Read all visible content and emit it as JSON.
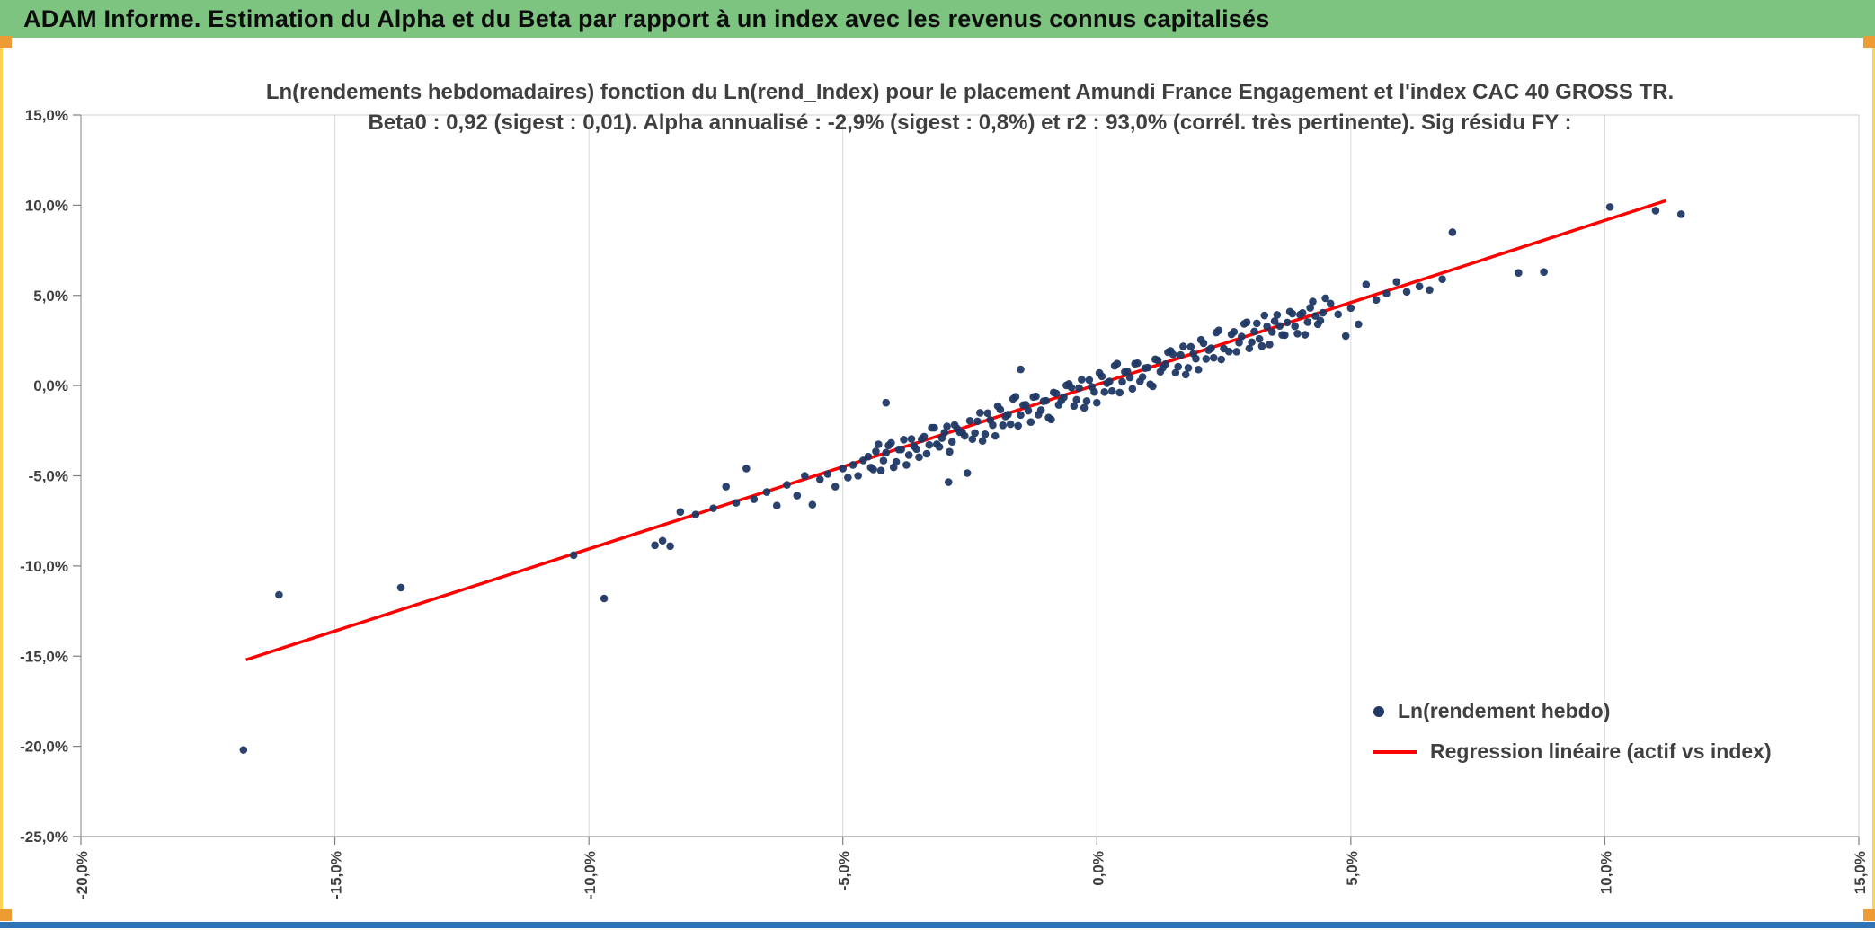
{
  "header": {
    "title": "ADAM Informe. Estimation du Alpha et du Beta par rapport à un index avec les revenus connus capitalisés"
  },
  "theme": {
    "header_bg": "#7cc47f",
    "accent_orange": "#ED9B33",
    "accent_gold": "#ffd34d",
    "bottom_bar_blue": "#2e74b5",
    "scatter_color": "#1F3864",
    "regression_color": "#FF0000",
    "grid_color": "#d9d9d9",
    "tick_text_color": "#404040"
  },
  "chart_data": {
    "type": "scatter",
    "title_line1": "Ln(rendements hebdomadaires) fonction du Ln(rend_Index) pour le placement Amundi France Engagement  et l'index CAC 40 GROSS TR.",
    "title_line2": "Beta0 : 0,92 (sigest : 0,01). Alpha annualisé : -2,9% (sigest : 0,8%) et r2 : 93,0% (corrél. très pertinente). Sig résidu FY :",
    "stats": {
      "beta0": "0,92",
      "beta0_sigest": "0,01",
      "alpha_annualise": "-2,9%",
      "alpha_sigest": "0,8%",
      "r2": "93,0%",
      "correlation_note": "corrél. très pertinente"
    },
    "xlim": [
      -20,
      15
    ],
    "ylim": [
      -25,
      15
    ],
    "grid": "vertical",
    "grid_color": "#d9d9d9",
    "legend_position": "inside-bottom-right",
    "x_tick_values": [
      -20,
      -15,
      -10,
      -5,
      0,
      5,
      10,
      15
    ],
    "x_tick_labels": [
      "-20,0%",
      "-15,0%",
      "-10,0%",
      "-5,0%",
      "0,0%",
      "5,0%",
      "10,0%",
      "15,0%"
    ],
    "y_tick_values": [
      15,
      10,
      5,
      0,
      -5,
      -10,
      -15,
      -20,
      -25
    ],
    "y_tick_labels": [
      "15,0%",
      "10,0%",
      "5,0%",
      "0,0%",
      "-5,0%",
      "-10,0%",
      "-15,0%",
      "-20,0%",
      "-25,0%"
    ],
    "series": [
      {
        "name": "Ln(rendement hebdo)",
        "type": "scatter",
        "color": "#1F3864",
        "marker": "dot",
        "points": [
          [
            -16.8,
            -20.2
          ],
          [
            -16.1,
            -11.6
          ],
          [
            -13.7,
            -11.2
          ],
          [
            -10.3,
            -9.4
          ],
          [
            -9.7,
            -11.8
          ],
          [
            -8.7,
            -8.85
          ],
          [
            -8.55,
            -8.6
          ],
          [
            -8.4,
            -8.9
          ],
          [
            -8.2,
            -7.0
          ],
          [
            -7.9,
            -7.15
          ],
          [
            -7.55,
            -6.8
          ],
          [
            -7.3,
            -5.6
          ],
          [
            -7.1,
            -6.5
          ],
          [
            -6.9,
            -4.6
          ],
          [
            -6.75,
            -6.3
          ],
          [
            -6.5,
            -5.9
          ],
          [
            -6.3,
            -6.65
          ],
          [
            -6.1,
            -5.5
          ],
          [
            -5.9,
            -6.1
          ],
          [
            -5.75,
            -5.0
          ],
          [
            -5.6,
            -6.6
          ],
          [
            -5.45,
            -5.2
          ],
          [
            -5.3,
            -4.9
          ],
          [
            -5.15,
            -5.6
          ],
          [
            -5.0,
            -4.6
          ],
          [
            -4.9,
            -5.1
          ],
          [
            -4.8,
            -4.4
          ],
          [
            -4.7,
            -5.0
          ],
          [
            -4.6,
            -4.15
          ],
          [
            -4.15,
            -0.95
          ],
          [
            -2.92,
            -5.35
          ],
          [
            -2.55,
            -4.85
          ],
          [
            -1.5,
            0.9
          ],
          [
            -4.5,
            -3.94
          ],
          [
            -4.4,
            -4.65
          ],
          [
            -4.3,
            -3.26
          ],
          [
            -4.2,
            -4.16
          ],
          [
            -4.1,
            -3.32
          ],
          [
            -4.0,
            -4.53
          ],
          [
            -3.9,
            -3.54
          ],
          [
            -3.8,
            -3.0
          ],
          [
            -3.7,
            -3.85
          ],
          [
            -3.6,
            -3.36
          ],
          [
            -3.5,
            -3.97
          ],
          [
            -3.4,
            -2.83
          ],
          [
            -3.3,
            -3.29
          ],
          [
            -3.2,
            -2.34
          ],
          [
            -3.1,
            -3.4
          ],
          [
            -3.0,
            -2.61
          ],
          [
            -2.9,
            -3.67
          ],
          [
            -2.8,
            -2.18
          ],
          [
            -2.7,
            -2.58
          ],
          [
            -2.6,
            -2.79
          ],
          [
            -4.45,
            -4.54
          ],
          [
            -4.35,
            -3.65
          ],
          [
            -4.25,
            -4.71
          ],
          [
            -4.15,
            -3.72
          ],
          [
            -4.05,
            -3.18
          ],
          [
            -3.95,
            -4.23
          ],
          [
            -3.85,
            -3.54
          ],
          [
            -3.75,
            -4.4
          ],
          [
            -3.65,
            -2.96
          ],
          [
            -3.55,
            -3.52
          ],
          [
            -3.45,
            -2.97
          ],
          [
            -3.35,
            -3.78
          ],
          [
            -3.25,
            -2.34
          ],
          [
            -3.15,
            -3.25
          ],
          [
            -3.05,
            -2.91
          ],
          [
            -2.95,
            -2.26
          ],
          [
            -2.85,
            -3.12
          ],
          [
            -2.75,
            -2.38
          ],
          [
            -2.65,
            -2.59
          ],
          [
            -2.5,
            -1.95
          ],
          [
            -2.4,
            -2.63
          ],
          [
            -2.3,
            -1.51
          ],
          [
            -2.2,
            -2.7
          ],
          [
            -2.1,
            -1.91
          ],
          [
            -2.0,
            -2.79
          ],
          [
            -1.9,
            -1.33
          ],
          [
            -1.8,
            -1.71
          ],
          [
            -1.7,
            -2.14
          ],
          [
            -1.6,
            -0.62
          ],
          [
            -1.5,
            -1.63
          ],
          [
            -1.4,
            -1.06
          ],
          [
            -1.3,
            -2.02
          ],
          [
            -1.2,
            -0.6
          ],
          [
            -1.1,
            -1.36
          ],
          [
            -1.0,
            -0.84
          ],
          [
            -0.9,
            -1.88
          ],
          [
            -0.8,
            -0.44
          ],
          [
            -0.7,
            -0.84
          ],
          [
            -0.6,
            0.01
          ],
          [
            -0.5,
            -0.11
          ],
          [
            -0.4,
            -0.79
          ],
          [
            -0.3,
            0.33
          ],
          [
            -0.2,
            -0.86
          ],
          [
            -0.1,
            -0.07
          ],
          [
            0.0,
            -0.95
          ],
          [
            0.1,
            0.51
          ],
          [
            0.2,
            0.13
          ],
          [
            0.3,
            -0.3
          ],
          [
            0.4,
            1.22
          ],
          [
            0.5,
            0.21
          ],
          [
            0.6,
            0.78
          ],
          [
            0.7,
            -0.18
          ],
          [
            0.8,
            1.24
          ],
          [
            0.9,
            0.48
          ],
          [
            1.0,
            1.0
          ],
          [
            1.1,
            -0.04
          ],
          [
            1.2,
            1.4
          ],
          [
            1.3,
            1.0
          ],
          [
            1.4,
            1.85
          ],
          [
            1.5,
            1.73
          ],
          [
            1.6,
            1.05
          ],
          [
            1.7,
            2.17
          ],
          [
            1.8,
            0.98
          ],
          [
            1.9,
            1.77
          ],
          [
            2.0,
            0.89
          ],
          [
            2.1,
            2.35
          ],
          [
            2.2,
            1.97
          ],
          [
            2.3,
            1.54
          ],
          [
            2.4,
            3.06
          ],
          [
            2.5,
            2.05
          ],
          [
            -2.45,
            -2.97
          ],
          [
            -2.35,
            -1.98
          ],
          [
            -2.25,
            -3.07
          ],
          [
            -2.15,
            -1.53
          ],
          [
            -2.05,
            -2.19
          ],
          [
            -1.95,
            -1.14
          ],
          [
            -1.85,
            -2.2
          ],
          [
            -1.75,
            -1.61
          ],
          [
            -1.65,
            -0.74
          ],
          [
            -1.55,
            -2.23
          ],
          [
            -1.45,
            -1.08
          ],
          [
            -1.35,
            -1.39
          ],
          [
            -1.25,
            -0.63
          ],
          [
            -1.15,
            -1.61
          ],
          [
            -1.05,
            -0.87
          ],
          [
            -0.95,
            -1.77
          ],
          [
            -0.85,
            -0.38
          ],
          [
            -0.75,
            -1.07
          ],
          [
            -0.65,
            -0.65
          ],
          [
            -0.55,
            0.09
          ],
          [
            -0.45,
            -1.13
          ],
          [
            -0.35,
            -0.14
          ],
          [
            -0.25,
            -1.23
          ],
          [
            -0.15,
            0.31
          ],
          [
            -0.05,
            -0.35
          ],
          [
            0.05,
            0.7
          ],
          [
            0.15,
            -0.36
          ],
          [
            0.25,
            0.23
          ],
          [
            0.35,
            1.1
          ],
          [
            0.45,
            -0.39
          ],
          [
            0.55,
            0.76
          ],
          [
            0.65,
            0.45
          ],
          [
            0.75,
            1.21
          ],
          [
            0.85,
            0.23
          ],
          [
            0.95,
            0.97
          ],
          [
            1.05,
            0.07
          ],
          [
            1.15,
            1.46
          ],
          [
            1.25,
            0.77
          ],
          [
            1.35,
            1.19
          ],
          [
            1.45,
            1.93
          ],
          [
            1.55,
            0.71
          ],
          [
            1.65,
            1.7
          ],
          [
            1.75,
            0.61
          ],
          [
            1.85,
            2.15
          ],
          [
            1.95,
            1.49
          ],
          [
            2.05,
            2.54
          ],
          [
            2.15,
            1.48
          ],
          [
            2.25,
            2.07
          ],
          [
            2.35,
            2.94
          ],
          [
            2.45,
            1.45
          ],
          [
            2.6,
            1.89
          ],
          [
            2.7,
            2.98
          ],
          [
            2.8,
            2.38
          ],
          [
            2.9,
            3.42
          ],
          [
            3.0,
            2.06
          ],
          [
            3.1,
            3.0
          ],
          [
            3.2,
            2.59
          ],
          [
            3.3,
            3.89
          ],
          [
            3.4,
            2.28
          ],
          [
            3.5,
            3.57
          ],
          [
            3.6,
            3.31
          ],
          [
            3.7,
            2.8
          ],
          [
            3.8,
            4.1
          ],
          [
            3.9,
            3.29
          ],
          [
            4.0,
            3.93
          ],
          [
            4.1,
            2.82
          ],
          [
            4.2,
            4.31
          ],
          [
            4.3,
            3.86
          ],
          [
            4.4,
            3.6
          ],
          [
            4.5,
            4.84
          ],
          [
            2.65,
            2.84
          ],
          [
            2.75,
            1.88
          ],
          [
            2.85,
            2.72
          ],
          [
            2.95,
            3.51
          ],
          [
            3.05,
            2.41
          ],
          [
            3.15,
            3.45
          ],
          [
            3.25,
            2.19
          ],
          [
            3.35,
            3.28
          ],
          [
            3.45,
            2.97
          ],
          [
            3.55,
            3.92
          ],
          [
            3.65,
            2.81
          ],
          [
            3.75,
            3.5
          ],
          [
            3.85,
            3.99
          ],
          [
            3.95,
            2.88
          ],
          [
            4.05,
            4.03
          ],
          [
            4.15,
            3.52
          ],
          [
            4.25,
            4.66
          ],
          [
            4.35,
            3.4
          ],
          [
            4.45,
            4.04
          ],
          [
            4.6,
            4.55
          ],
          [
            4.75,
            3.95
          ],
          [
            4.9,
            2.75
          ],
          [
            5.0,
            4.3
          ],
          [
            5.15,
            3.4
          ],
          [
            5.3,
            5.6
          ],
          [
            5.5,
            4.75
          ],
          [
            5.7,
            5.1
          ],
          [
            5.9,
            5.75
          ],
          [
            6.1,
            5.2
          ],
          [
            6.35,
            5.5
          ],
          [
            6.55,
            5.3
          ],
          [
            6.8,
            5.9
          ],
          [
            7.0,
            8.5
          ],
          [
            8.3,
            6.25
          ],
          [
            8.8,
            6.3
          ],
          [
            10.1,
            9.9
          ],
          [
            11.0,
            9.7
          ],
          [
            11.5,
            9.5
          ]
        ]
      },
      {
        "name": "Regression linéaire (actif vs index)",
        "type": "line",
        "color": "#FF0000",
        "points": [
          [
            -16.75,
            -15.2
          ],
          [
            11.2,
            10.25
          ]
        ]
      }
    ]
  }
}
